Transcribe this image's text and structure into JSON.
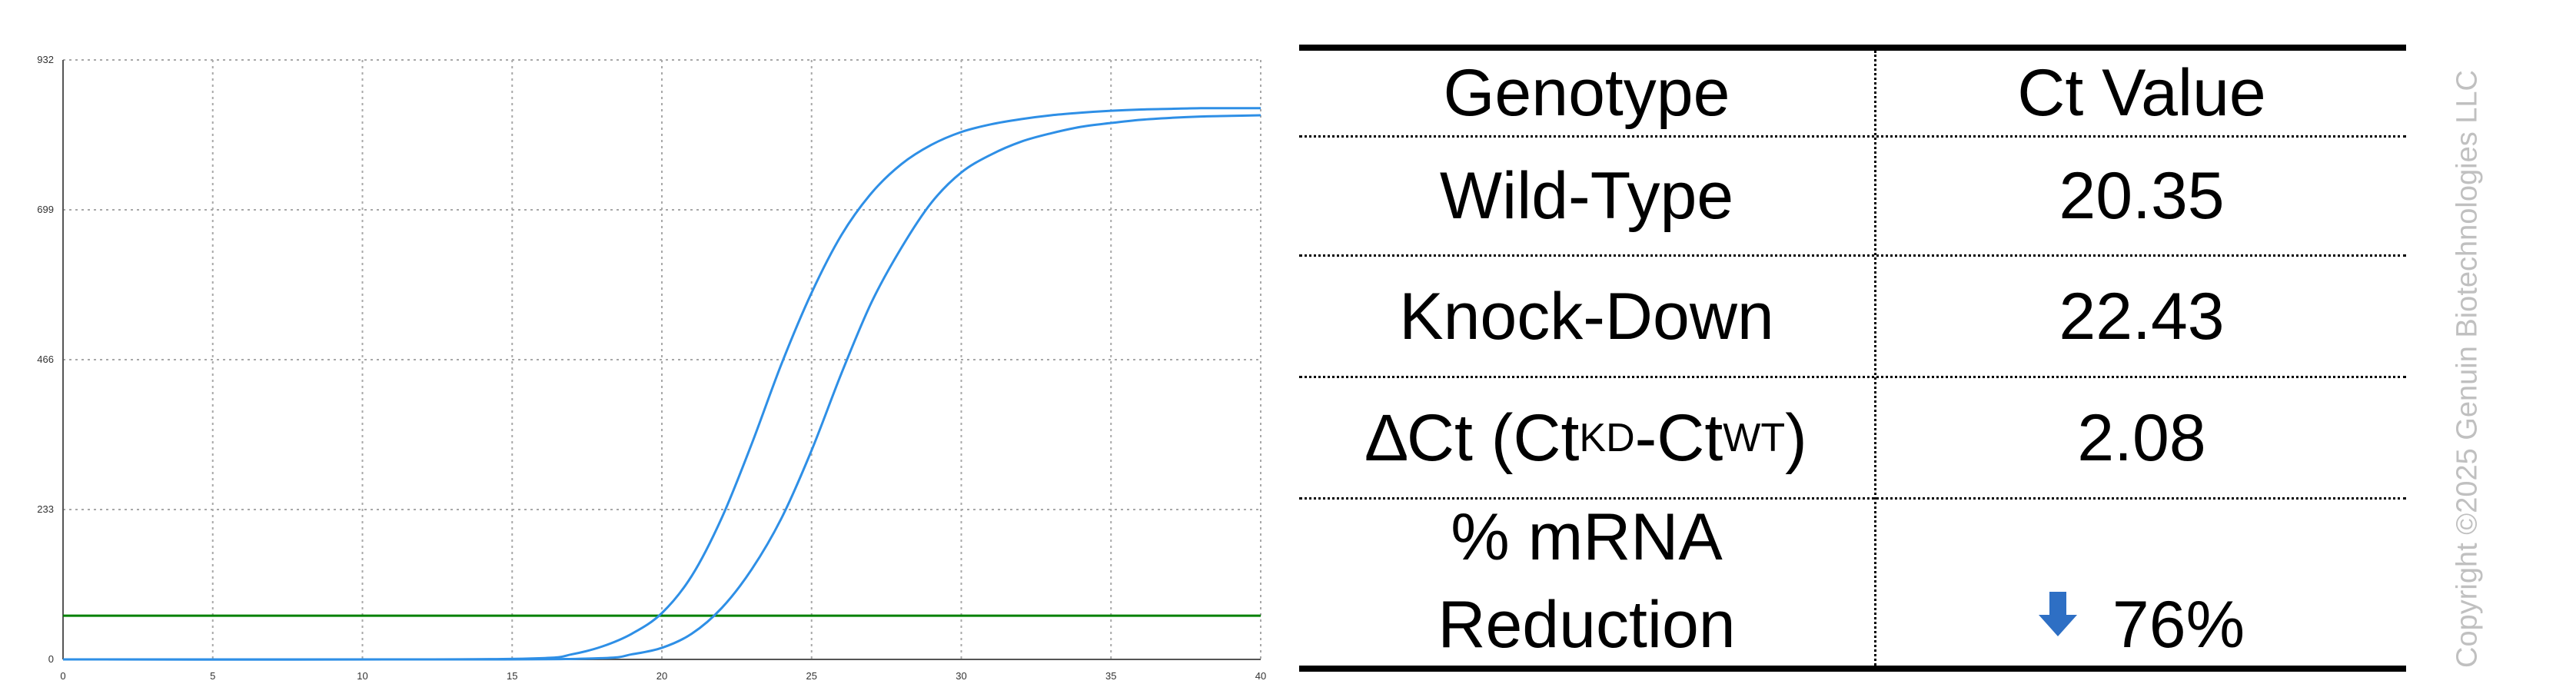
{
  "chart_data": {
    "type": "line",
    "title": "",
    "xlabel": "",
    "ylabel": "",
    "xlim": [
      0,
      40
    ],
    "ylim": [
      0,
      932
    ],
    "xticks": [
      0,
      5,
      10,
      15,
      20,
      25,
      30,
      35,
      40
    ],
    "yticks": [
      0,
      233,
      466,
      699,
      932
    ],
    "grid": "dotted",
    "legend": "none",
    "threshold": {
      "y": 68,
      "color": "#008000"
    },
    "series": [
      {
        "color": "#2e8fe6",
        "x": [
          0,
          12,
          16,
          17,
          18,
          19,
          20,
          21,
          22,
          23,
          24,
          25,
          26,
          27,
          28,
          29,
          30,
          31,
          32,
          33,
          34,
          35,
          36,
          37,
          38,
          39,
          40
        ],
        "y": [
          0,
          0,
          2,
          8,
          20,
          40,
          72,
          130,
          220,
          335,
          460,
          570,
          660,
          725,
          770,
          800,
          820,
          832,
          840,
          846,
          850,
          853,
          855,
          856,
          857,
          857,
          857
        ]
      },
      {
        "color": "#2e8fe6",
        "x": [
          0,
          14,
          18,
          19,
          20,
          21,
          22,
          23,
          24,
          25,
          26,
          27,
          28,
          29,
          30,
          31,
          32,
          33,
          34,
          35,
          36,
          37,
          38,
          39,
          40
        ],
        "y": [
          0,
          0,
          2,
          8,
          18,
          40,
          80,
          140,
          220,
          325,
          445,
          555,
          640,
          710,
          757,
          785,
          805,
          818,
          828,
          834,
          839,
          842,
          844,
          845,
          846
        ]
      }
    ]
  },
  "table": {
    "headers": [
      "Genotype",
      "Ct Value"
    ],
    "rows": [
      {
        "genotype": "Wild-Type",
        "ct": "20.35"
      },
      {
        "genotype": "Knock-Down",
        "ct": "22.43"
      }
    ],
    "delta": {
      "prefix": "∆Ct (Ct",
      "sub1": "KD",
      "mid": "-Ct",
      "sub2": "WT",
      "suffix": ")",
      "value": "2.08"
    },
    "reduction": {
      "line1": "% mRNA",
      "line2": "Reduction",
      "arrow_icon": "arrow-down-icon",
      "arrow_color": "#2e6fc4",
      "value": "76%"
    }
  },
  "watermark": "Copyright ©2025 Genuin Biotechnologies LLC"
}
